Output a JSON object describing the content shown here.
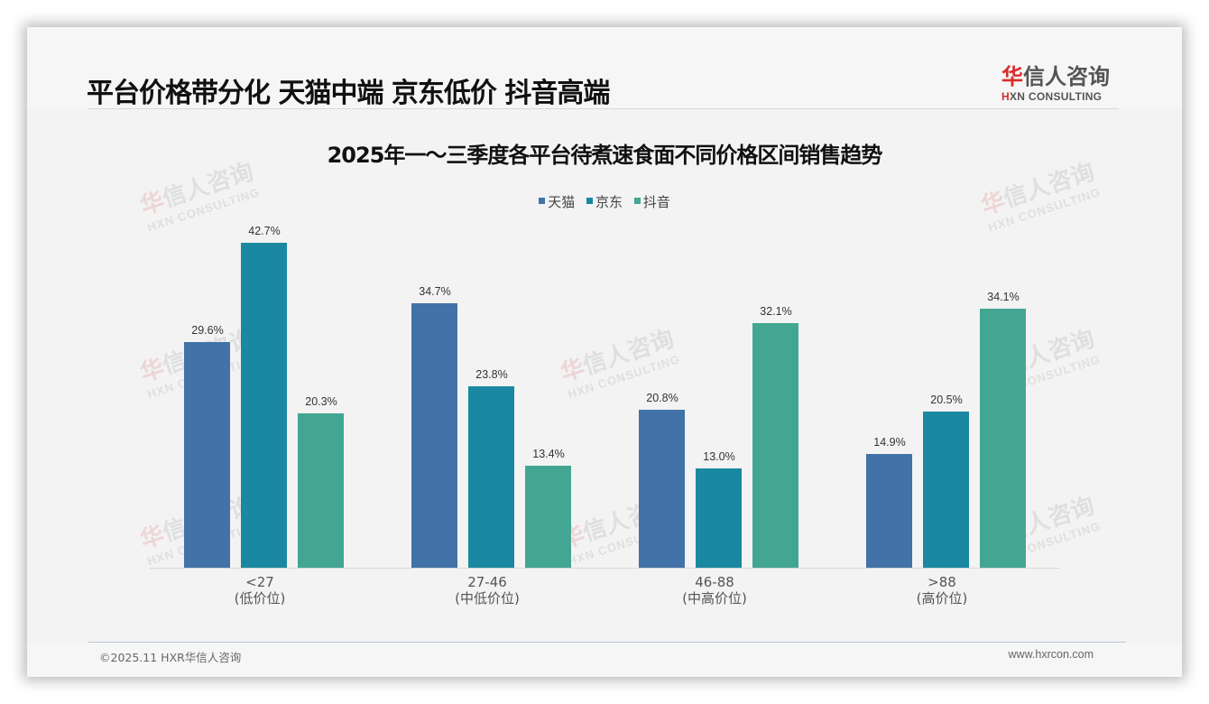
{
  "header": {
    "title": "平台价格带分化 天猫中端 京东低价 抖音高端",
    "logo_cn_first": "华",
    "logo_cn_rest": "信人咨询",
    "logo_en_first": "H",
    "logo_en_rest": "XN CONSULTING"
  },
  "watermark": {
    "cn_first": "华",
    "cn_rest": "信人咨询",
    "en": "HXN CONSULTING"
  },
  "colors": {
    "tmall": "#4272a8",
    "jd": "#1a88a0",
    "douyin": "#43a692"
  },
  "chart_data": {
    "type": "bar",
    "title": "2025年一～三季度各平台待煮速食面不同价格区间销售趋势",
    "categories": [
      "<27\n(低价位)",
      "27-46\n(中低价位)",
      "46-88\n(中高价位)",
      ">88\n(高价位)"
    ],
    "category_labels": [
      {
        "range": "<27",
        "tier": "(低价位)"
      },
      {
        "range": "27-46",
        "tier": "(中低价位)"
      },
      {
        "range": "46-88",
        "tier": "(中高价位)"
      },
      {
        "range": ">88",
        "tier": "(高价位)"
      }
    ],
    "series": [
      {
        "name": "天猫",
        "values": [
          29.6,
          34.7,
          20.8,
          14.9
        ],
        "labels": [
          "29.6%",
          "34.7%",
          "20.8%",
          "14.9%"
        ],
        "color": "#4272a8"
      },
      {
        "name": "京东",
        "values": [
          42.7,
          23.8,
          13.0,
          20.5
        ],
        "labels": [
          "42.7%",
          "23.8%",
          "13.0%",
          "20.5%"
        ],
        "color": "#1a88a0"
      },
      {
        "name": "抖音",
        "values": [
          20.3,
          13.4,
          32.1,
          34.1
        ],
        "labels": [
          "20.3%",
          "13.4%",
          "32.1%",
          "34.1%"
        ],
        "color": "#43a692"
      }
    ],
    "xlabel": "",
    "ylabel": "",
    "unit": "%",
    "ylim": [
      0,
      47.5
    ],
    "grid": false,
    "legend_position": "top"
  },
  "footer": {
    "copyright": "©2025.11 HXR华信人咨询",
    "website": "www.hxrcon.com"
  }
}
